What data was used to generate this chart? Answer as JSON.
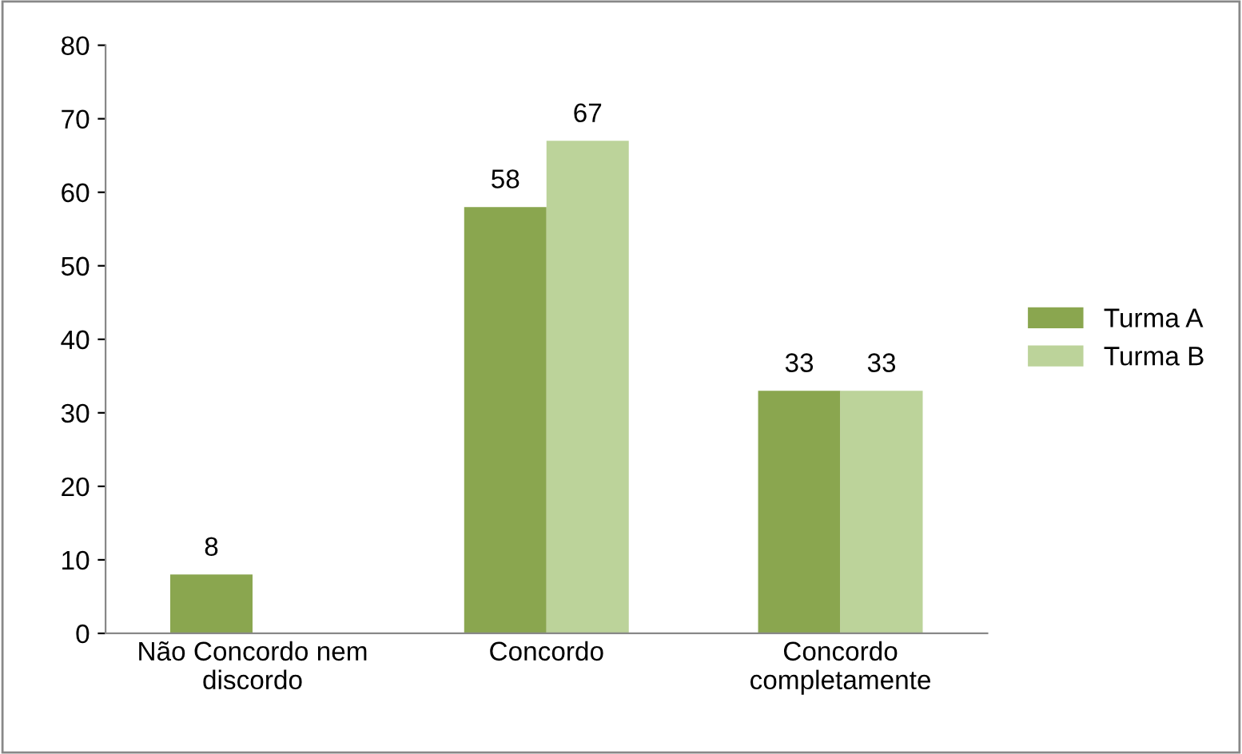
{
  "chart_data": {
    "type": "bar",
    "categories": [
      "Não Concordo nem\ndiscordo",
      "Concordo",
      "Concordo\ncompletamente"
    ],
    "series": [
      {
        "name": "Turma A",
        "color": "#8aa64f",
        "values": [
          8,
          58,
          33
        ]
      },
      {
        "name": "Turma B",
        "color": "#bcd39a",
        "values": [
          null,
          67,
          33
        ]
      }
    ],
    "ylim": [
      0,
      80
    ],
    "yticks": [
      0,
      10,
      20,
      30,
      40,
      50,
      60,
      70,
      80
    ],
    "grid": false,
    "legend": "right",
    "data_labels": true
  }
}
